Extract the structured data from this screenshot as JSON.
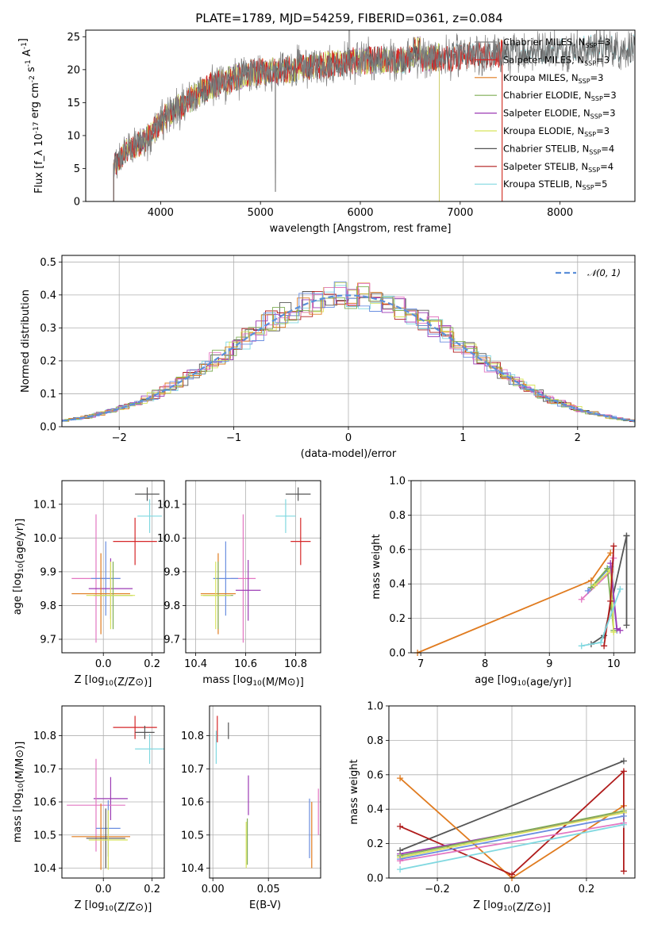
{
  "title": "PLATE=1789, MJD=54259, FIBERID=0361, z=0.084",
  "colors": {
    "Chabrier MILES": "#808080",
    "Salpeter MILES": "#d62728",
    "Kroupa MILES": "#e07b1f",
    "Chabrier ELODIE": "#7fae55",
    "Salpeter ELODIE": "#9c3bb5",
    "Kroupa ELODIE": "#d8e35a",
    "Chabrier STELIB": "#555555",
    "Salpeter STELIB": "#b01c1c",
    "Kroupa STELIB": "#80d8e0",
    "pink": "#e377c2",
    "blue": "#6a8ee0",
    "gauss": "#5b8fd9"
  },
  "chart_data": [
    {
      "type": "line",
      "id": "spectrum",
      "title": "PLATE=1789, MJD=54259, FIBERID=0361, z=0.084",
      "xlabel": "wavelength [Angstrom, rest frame]",
      "ylabel": "Flux [f_λ 10^-17 erg cm^-2 s^-1 A^-1]",
      "xlim": [
        3250,
        8750
      ],
      "ylim": [
        0,
        26
      ],
      "xticks": [
        "4000",
        "5000",
        "6000",
        "7000",
        "8000"
      ],
      "yticks": [
        "0",
        "5",
        "10",
        "15",
        "20",
        "25"
      ],
      "legend": [
        {
          "name": "Chabrier MILES, N",
          "sub": "SSP",
          "suffix": "=3"
        },
        {
          "name": "Salpeter MILES, N",
          "sub": "SSP",
          "suffix": "=3"
        },
        {
          "name": "Kroupa MILES, N",
          "sub": "SSP",
          "suffix": "=3"
        },
        {
          "name": "Chabrier ELODIE, N",
          "sub": "SSP",
          "suffix": "=3"
        },
        {
          "name": "Salpeter ELODIE, N",
          "sub": "SSP",
          "suffix": "=3"
        },
        {
          "name": "Kroupa ELODIE, N",
          "sub": "SSP",
          "suffix": "=3"
        },
        {
          "name": "Chabrier STELIB, N",
          "sub": "SSP",
          "suffix": "=4"
        },
        {
          "name": "Salpeter STELIB, N",
          "sub": "SSP",
          "suffix": "=4"
        },
        {
          "name": "Kroupa STELIB, N",
          "sub": "SSP",
          "suffix": "=5"
        }
      ],
      "legend_placement": "upper right",
      "continuum": [
        [
          3530,
          5
        ],
        [
          3650,
          7.5
        ],
        [
          3800,
          9
        ],
        [
          3900,
          10
        ],
        [
          4000,
          12
        ],
        [
          4100,
          13.5
        ],
        [
          4300,
          15.5
        ],
        [
          4500,
          17.5
        ],
        [
          4700,
          18.5
        ],
        [
          4900,
          19.5
        ],
        [
          5100,
          19.8
        ],
        [
          5300,
          20
        ],
        [
          5500,
          20.5
        ],
        [
          5800,
          21
        ],
        [
          6100,
          21.5
        ],
        [
          6400,
          21.5
        ],
        [
          6700,
          21.8
        ],
        [
          7000,
          22
        ],
        [
          7300,
          22.3
        ],
        [
          7600,
          22.8
        ],
        [
          8000,
          23
        ],
        [
          8400,
          23.3
        ],
        [
          8700,
          23.2
        ]
      ]
    },
    {
      "type": "line",
      "id": "residuals",
      "xlabel": "(data-model)/error",
      "ylabel": "Normed distribution",
      "xlim": [
        -2.5,
        2.5
      ],
      "ylim": [
        0,
        0.52
      ],
      "xticks": [
        "−2",
        "−1",
        "0",
        "1",
        "2"
      ],
      "yticks": [
        "0.0",
        "0.1",
        "0.2",
        "0.3",
        "0.4",
        "0.5"
      ],
      "legend": "N(0,1)",
      "grid": true
    },
    {
      "type": "scatter",
      "id": "age_vs_Z",
      "xlabel": "Z [log10(Z/Z⊙)]",
      "ylabel": "age [log10(age/yr)]",
      "xlim": [
        -0.17,
        0.25
      ],
      "ylim": [
        9.66,
        10.17
      ],
      "xticks": [
        "0.0",
        "0.2"
      ],
      "yticks": [
        "9.7",
        "9.8",
        "9.9",
        "10.0",
        "10.1"
      ],
      "points": [
        {
          "color": "#555555",
          "x": 0.18,
          "y": 10.13,
          "xerr": 0.05,
          "yerr": 0.02
        },
        {
          "color": "#80d8e0",
          "x": 0.19,
          "y": 10.065,
          "xerr": 0.05,
          "yerr": 0.05
        },
        {
          "color": "#d62728",
          "x": 0.13,
          "y": 9.99,
          "xerr": 0.09,
          "yerr": 0.07
        },
        {
          "color": "#e377c2",
          "x": -0.03,
          "y": 9.88,
          "xerr": 0.1,
          "yerr": 0.19
        },
        {
          "color": "#6a8ee0",
          "x": 0.01,
          "y": 9.88,
          "xerr": 0.06,
          "yerr": 0.11
        },
        {
          "color": "#9c3bb5",
          "x": 0.03,
          "y": 9.85,
          "xerr": 0.09,
          "yerr": 0.09
        },
        {
          "color": "#e07b1f",
          "x": -0.01,
          "y": 9.835,
          "xerr": 0.12,
          "yerr": 0.12
        },
        {
          "color": "#7fae55",
          "x": 0.04,
          "y": 9.83,
          "xerr": 0.08,
          "yerr": 0.1
        },
        {
          "color": "#d8e35a",
          "x": 0.03,
          "y": 9.83,
          "xerr": 0.1,
          "yerr": 0.1
        }
      ]
    },
    {
      "type": "scatter",
      "id": "age_vs_mass",
      "xlabel": "mass [log10(M/M⊙)]",
      "ylabel": "",
      "xlim": [
        10.36,
        10.9
      ],
      "ylim": [
        9.66,
        10.17
      ],
      "xticks": [
        "10.4",
        "10.6",
        "10.8"
      ],
      "yticks": [
        "9.7",
        "9.8",
        "9.9",
        "10.0",
        "10.1"
      ],
      "points": [
        {
          "color": "#555555",
          "x": 10.81,
          "y": 10.13,
          "xerr": 0.05,
          "yerr": 0.02
        },
        {
          "color": "#80d8e0",
          "x": 10.76,
          "y": 10.065,
          "xerr": 0.04,
          "yerr": 0.05
        },
        {
          "color": "#d62728",
          "x": 10.82,
          "y": 9.99,
          "xerr": 0.04,
          "yerr": 0.07
        },
        {
          "color": "#e377c2",
          "x": 10.59,
          "y": 9.88,
          "xerr": 0.05,
          "yerr": 0.19
        },
        {
          "color": "#6a8ee0",
          "x": 10.52,
          "y": 9.88,
          "xerr": 0.05,
          "yerr": 0.11
        },
        {
          "color": "#9c3bb5",
          "x": 10.61,
          "y": 9.845,
          "xerr": 0.05,
          "yerr": 0.09
        },
        {
          "color": "#e07b1f",
          "x": 10.49,
          "y": 9.835,
          "xerr": 0.07,
          "yerr": 0.12
        },
        {
          "color": "#7fae55",
          "x": 10.49,
          "y": 9.83,
          "xerr": 0.06,
          "yerr": 0.1
        },
        {
          "color": "#d8e35a",
          "x": 10.48,
          "y": 9.83,
          "xerr": 0.06,
          "yerr": 0.1
        }
      ]
    },
    {
      "type": "line",
      "id": "massweight_vs_age",
      "xlabel": "age [log10(age/yr)]",
      "ylabel": "mass weight",
      "xlim": [
        6.85,
        10.33
      ],
      "ylim": [
        0,
        1
      ],
      "xticks": [
        "7",
        "8",
        "9",
        "10"
      ],
      "yticks": [
        "0.0",
        "0.2",
        "0.4",
        "0.6",
        "0.8",
        "1.0"
      ],
      "grid": true,
      "series": [
        {
          "color": "#e07b1f",
          "x": [
            6.95,
            9.65,
            9.95
          ],
          "y": [
            0.0,
            0.42,
            0.58
          ]
        },
        {
          "color": "#555555",
          "x": [
            9.65,
            9.85,
            10.2
          ],
          "y": [
            0.05,
            0.1,
            0.68
          ]
        },
        {
          "color": "#555555",
          "x": [
            10.2,
            10.2
          ],
          "y": [
            0.68,
            0.16
          ]
        },
        {
          "color": "#e377c2",
          "x": [
            9.5,
            9.95,
            10.0
          ],
          "y": [
            0.31,
            0.47,
            0.55
          ]
        },
        {
          "color": "#6a8ee0",
          "x": [
            9.6,
            9.95,
            10.05
          ],
          "y": [
            0.36,
            0.5,
            0.13
          ]
        },
        {
          "color": "#7fae55",
          "x": [
            9.65,
            9.9,
            10.0
          ],
          "y": [
            0.38,
            0.49,
            0.13
          ]
        },
        {
          "color": "#d8e35a",
          "x": [
            9.7,
            9.95,
            10.0
          ],
          "y": [
            0.39,
            0.48,
            0.12
          ]
        },
        {
          "color": "#9c3bb5",
          "x": [
            9.95,
            10.05,
            10.1
          ],
          "y": [
            0.52,
            0.14,
            0.13
          ]
        },
        {
          "color": "#b01c1c",
          "x": [
            9.85,
            9.95,
            10.0
          ],
          "y": [
            0.04,
            0.3,
            0.62
          ]
        },
        {
          "color": "#80d8e0",
          "x": [
            9.5,
            9.8,
            10.1
          ],
          "y": [
            0.04,
            0.06,
            0.37
          ]
        }
      ]
    },
    {
      "type": "scatter",
      "id": "mass_vs_Z",
      "xlabel": "Z [log10(Z/Z⊙)]",
      "ylabel": "mass [log10(M/M⊙)]",
      "xlim": [
        -0.17,
        0.25
      ],
      "ylim": [
        10.37,
        10.89
      ],
      "xticks": [
        "0.0",
        "0.2"
      ],
      "yticks": [
        "10.4",
        "10.5",
        "10.6",
        "10.7",
        "10.8"
      ],
      "points": [
        {
          "color": "#d62728",
          "x": 0.13,
          "y": 10.825,
          "xerr": 0.09,
          "yerr": 0.035
        },
        {
          "color": "#555555",
          "x": 0.17,
          "y": 10.81,
          "xerr": 0.04,
          "yerr": 0.02
        },
        {
          "color": "#80d8e0",
          "x": 0.19,
          "y": 10.76,
          "xerr": 0.06,
          "yerr": 0.045
        },
        {
          "color": "#9c3bb5",
          "x": 0.03,
          "y": 10.61,
          "xerr": 0.07,
          "yerr": 0.065
        },
        {
          "color": "#e377c2",
          "x": -0.03,
          "y": 10.59,
          "xerr": 0.12,
          "yerr": 0.14
        },
        {
          "color": "#6a8ee0",
          "x": 0.02,
          "y": 10.52,
          "xerr": 0.05,
          "yerr": 0.085
        },
        {
          "color": "#e07b1f",
          "x": -0.01,
          "y": 10.495,
          "xerr": 0.12,
          "yerr": 0.1
        },
        {
          "color": "#555555",
          "x": 0.01,
          "y": 10.49,
          "xerr": 0.08,
          "yerr": 0.09
        },
        {
          "color": "#d8e35a",
          "x": 0.02,
          "y": 10.485,
          "xerr": 0.08,
          "yerr": 0.09
        }
      ]
    },
    {
      "type": "scatter",
      "id": "mass_vs_EBV",
      "xlabel": "E(B-V)",
      "ylabel": "",
      "xlim": [
        -0.003,
        0.097
      ],
      "ylim": [
        10.37,
        10.89
      ],
      "xticks": [
        "0.00",
        "0.05"
      ],
      "yticks": [
        "10.4",
        "10.5",
        "10.6",
        "10.7",
        "10.8"
      ],
      "points": [
        {
          "color": "#d62728",
          "x": 0.004,
          "y": 10.82,
          "xerr": 0.0,
          "yerr": 0.04
        },
        {
          "color": "#555555",
          "x": 0.014,
          "y": 10.815,
          "xerr": 0.0,
          "yerr": 0.025
        },
        {
          "color": "#80d8e0",
          "x": 0.003,
          "y": 10.765,
          "xerr": 0.0,
          "yerr": 0.05
        },
        {
          "color": "#9c3bb5",
          "x": 0.032,
          "y": 10.62,
          "xerr": 0.0,
          "yerr": 0.06
        },
        {
          "color": "#e377c2",
          "x": 0.095,
          "y": 10.57,
          "xerr": 0.0,
          "yerr": 0.07
        },
        {
          "color": "#6a8ee0",
          "x": 0.087,
          "y": 10.52,
          "xerr": 0.0,
          "yerr": 0.09
        },
        {
          "color": "#e07b1f",
          "x": 0.089,
          "y": 10.5,
          "xerr": 0.0,
          "yerr": 0.1
        },
        {
          "color": "#7fae55",
          "x": 0.031,
          "y": 10.48,
          "xerr": 0.0,
          "yerr": 0.07
        },
        {
          "color": "#d8e35a",
          "x": 0.03,
          "y": 10.47,
          "xerr": 0.0,
          "yerr": 0.07
        }
      ]
    },
    {
      "type": "line",
      "id": "massweight_vs_Z",
      "xlabel": "Z [log10(Z/Z⊙)]",
      "ylabel": "mass weight",
      "xlim": [
        -0.33,
        0.33
      ],
      "ylim": [
        0,
        1
      ],
      "xticks": [
        "−0.2",
        "0.0",
        "0.2"
      ],
      "yticks": [
        "0.0",
        "0.2",
        "0.4",
        "0.6",
        "0.8",
        "1.0"
      ],
      "grid": true,
      "series": [
        {
          "color": "#555555",
          "x": [
            -0.3,
            0.3
          ],
          "y": [
            0.16,
            0.68
          ]
        },
        {
          "color": "#e07b1f",
          "x": [
            -0.3,
            0.0,
            0.3
          ],
          "y": [
            0.58,
            0.0,
            0.42
          ]
        },
        {
          "color": "#b01c1c",
          "x": [
            -0.3,
            0.0,
            0.3,
            0.3
          ],
          "y": [
            0.3,
            0.02,
            0.62,
            0.04
          ]
        },
        {
          "color": "#9c3bb5",
          "x": [
            -0.3,
            0.3
          ],
          "y": [
            0.14,
            0.38
          ]
        },
        {
          "color": "#7fae55",
          "x": [
            -0.3,
            0.3
          ],
          "y": [
            0.13,
            0.39
          ]
        },
        {
          "color": "#d8e35a",
          "x": [
            -0.3,
            0.3
          ],
          "y": [
            0.12,
            0.38
          ]
        },
        {
          "color": "#6a8ee0",
          "x": [
            -0.3,
            0.3
          ],
          "y": [
            0.11,
            0.36
          ]
        },
        {
          "color": "#e377c2",
          "x": [
            -0.3,
            0.3
          ],
          "y": [
            0.1,
            0.32
          ]
        },
        {
          "color": "#80d8e0",
          "x": [
            -0.3,
            0.3
          ],
          "y": [
            0.05,
            0.31
          ]
        }
      ]
    }
  ]
}
